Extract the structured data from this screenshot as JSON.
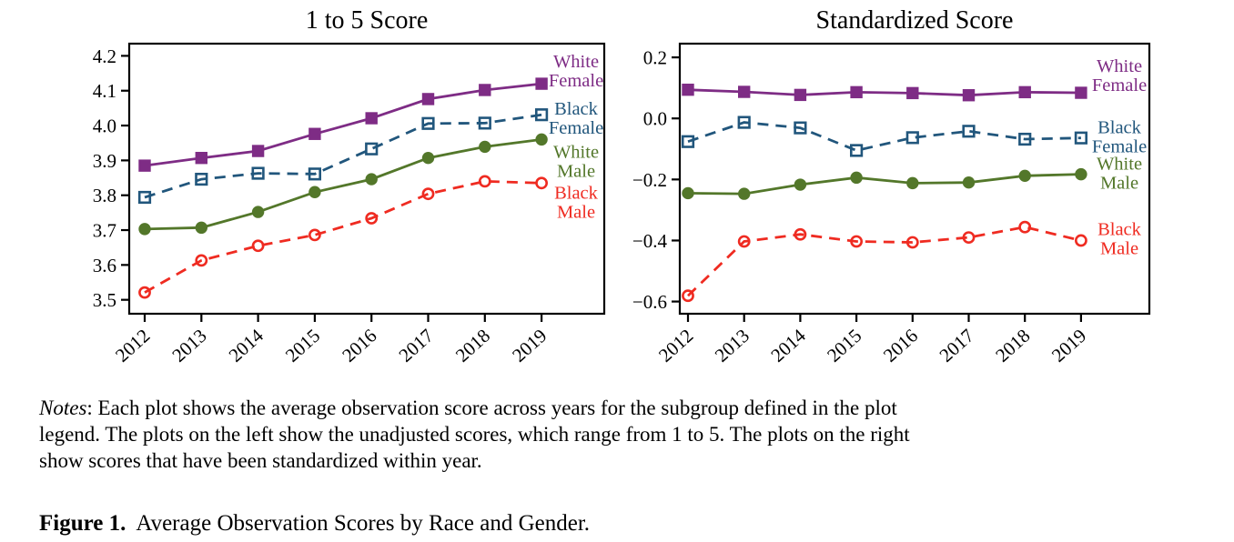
{
  "figure": {
    "background": "#ffffff"
  },
  "chart_data": [
    {
      "type": "line",
      "title": "1 to 5 Score",
      "x_tick_labels": [
        "2012",
        "2013",
        "2014",
        "2015",
        "2016",
        "2017",
        "2018",
        "2019"
      ],
      "ylim": [
        3.46,
        4.235
      ],
      "yticks": [
        3.5,
        3.6,
        3.7,
        3.8,
        3.9,
        4.0,
        4.1,
        4.2
      ],
      "ytick_labels": [
        "3.5",
        "3.6",
        "3.7",
        "3.8",
        "3.9",
        "4.0",
        "4.1",
        "4.2"
      ],
      "grid": false,
      "legend_position": "inside-right",
      "series": [
        {
          "name": "White Female",
          "label_lines": [
            "White",
            "Female"
          ],
          "color": "#7E2C85",
          "line_style": "solid",
          "marker": "filled-square",
          "values": [
            3.885,
            3.907,
            3.927,
            3.976,
            4.021,
            4.076,
            4.102,
            4.12
          ]
        },
        {
          "name": "Black Female",
          "label_lines": [
            "Black",
            "Female"
          ],
          "color": "#21567C",
          "line_style": "dashed",
          "marker": "open-square",
          "values": [
            3.794,
            3.846,
            3.863,
            3.861,
            3.933,
            4.006,
            4.007,
            4.031
          ]
        },
        {
          "name": "White Male",
          "label_lines": [
            "White",
            "Male"
          ],
          "color": "#53772A",
          "line_style": "solid",
          "marker": "filled-circle",
          "values": [
            3.703,
            3.707,
            3.752,
            3.809,
            3.846,
            3.907,
            3.939,
            3.96
          ]
        },
        {
          "name": "Black Male",
          "label_lines": [
            "Black",
            "Male"
          ],
          "color": "#EF2B21",
          "line_style": "dashed",
          "marker": "open-circle",
          "values": [
            3.521,
            3.613,
            3.655,
            3.686,
            3.734,
            3.804,
            3.84,
            3.835
          ]
        }
      ]
    },
    {
      "type": "line",
      "title": "Standardized Score",
      "x_tick_labels": [
        "2012",
        "2013",
        "2014",
        "2015",
        "2016",
        "2017",
        "2018",
        "2019"
      ],
      "ylim": [
        -0.64,
        0.245
      ],
      "yticks": [
        0.2,
        0.0,
        -0.2,
        -0.4,
        -0.6
      ],
      "ytick_labels": [
        "0.2",
        "0.0",
        "−0.2",
        "−0.4",
        "−0.6"
      ],
      "grid": false,
      "legend_position": "inside-right",
      "series": [
        {
          "name": "White Female",
          "label_lines": [
            "White",
            "Female"
          ],
          "color": "#7E2C85",
          "line_style": "solid",
          "marker": "filled-square",
          "values": [
            0.094,
            0.087,
            0.077,
            0.086,
            0.083,
            0.076,
            0.086,
            0.084
          ]
        },
        {
          "name": "Black Female",
          "label_lines": [
            "Black",
            "Female"
          ],
          "color": "#21567C",
          "line_style": "dashed",
          "marker": "open-square",
          "values": [
            -0.076,
            -0.013,
            -0.031,
            -0.105,
            -0.063,
            -0.042,
            -0.068,
            -0.064
          ]
        },
        {
          "name": "White Male",
          "label_lines": [
            "White",
            "Male"
          ],
          "color": "#53772A",
          "line_style": "solid",
          "marker": "filled-circle",
          "values": [
            -0.245,
            -0.247,
            -0.217,
            -0.194,
            -0.212,
            -0.21,
            -0.188,
            -0.183
          ]
        },
        {
          "name": "Black Male",
          "label_lines": [
            "Black",
            "Male"
          ],
          "color": "#EF2B21",
          "line_style": "dashed",
          "marker": "open-circle",
          "values": [
            -0.581,
            -0.403,
            -0.38,
            -0.403,
            -0.406,
            -0.39,
            -0.356,
            -0.4
          ]
        }
      ]
    }
  ],
  "notes": {
    "label": "Notes",
    "line1_rest": ": Each plot shows the average observation score across years for the subgroup defined in the plot",
    "line2": "legend. The plots on the left show the unadjusted scores, which range from 1 to 5. The plots on the right",
    "line3": "show scores that have been standardized within year."
  },
  "caption": {
    "label": "Figure 1.",
    "text": "Average Observation Scores by Race and Gender."
  }
}
